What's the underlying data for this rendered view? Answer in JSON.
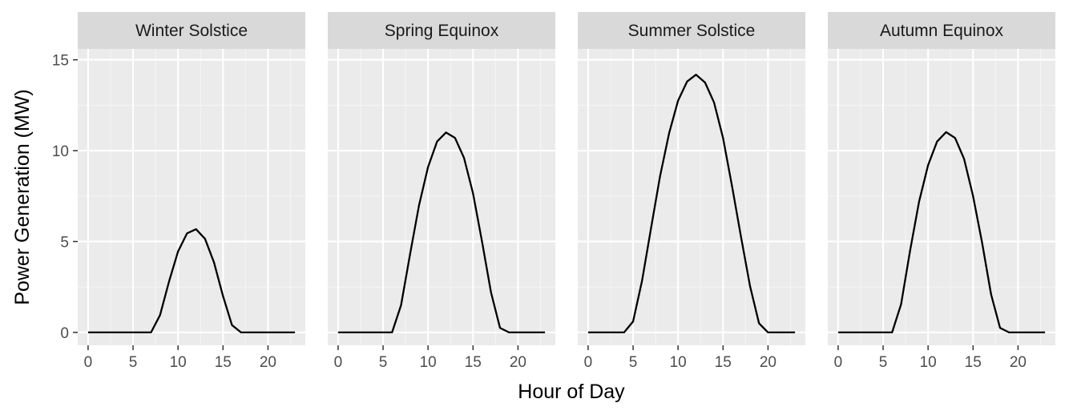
{
  "chart_data": {
    "type": "line",
    "facet_layout": "1 row x 4 columns",
    "xlabel": "Hour of Day",
    "ylabel": "Power Generation (MW)",
    "xlim": [
      -1.15,
      24.15
    ],
    "ylim": [
      -0.71,
      15.6
    ],
    "x_ticks": [
      0,
      5,
      10,
      15,
      20
    ],
    "y_ticks": [
      0,
      5,
      10,
      15
    ],
    "grid": true,
    "line_color": "#000000",
    "panel_background": "#ebebeb",
    "strip_background": "#d9d9d9",
    "x": [
      0,
      1,
      2,
      3,
      4,
      5,
      6,
      7,
      8,
      9,
      10,
      11,
      12,
      13,
      14,
      15,
      16,
      17,
      18,
      19,
      20,
      21,
      22,
      23
    ],
    "panels": [
      {
        "label": "Winter Solstice",
        "values": [
          0,
          0,
          0,
          0,
          0,
          0,
          0,
          0,
          0.95,
          2.8,
          4.45,
          5.45,
          5.68,
          5.15,
          3.85,
          2.0,
          0.4,
          0,
          0,
          0,
          0,
          0,
          0,
          0
        ]
      },
      {
        "label": "Spring Equinox",
        "values": [
          0,
          0,
          0,
          0,
          0,
          0,
          0,
          1.5,
          4.3,
          7.0,
          9.1,
          10.5,
          11.0,
          10.7,
          9.6,
          7.65,
          5.0,
          2.2,
          0.25,
          0,
          0,
          0,
          0,
          0
        ]
      },
      {
        "label": "Summer Solstice",
        "values": [
          0,
          0,
          0,
          0,
          0,
          0.6,
          2.85,
          5.75,
          8.6,
          10.95,
          12.75,
          13.8,
          14.18,
          13.75,
          12.65,
          10.7,
          8.05,
          5.25,
          2.55,
          0.5,
          0,
          0,
          0,
          0
        ]
      },
      {
        "label": "Autumn Equinox",
        "values": [
          0,
          0,
          0,
          0,
          0,
          0,
          0,
          1.55,
          4.5,
          7.2,
          9.2,
          10.5,
          11.02,
          10.7,
          9.55,
          7.5,
          4.95,
          2.1,
          0.25,
          0,
          0,
          0,
          0,
          0
        ]
      }
    ]
  }
}
